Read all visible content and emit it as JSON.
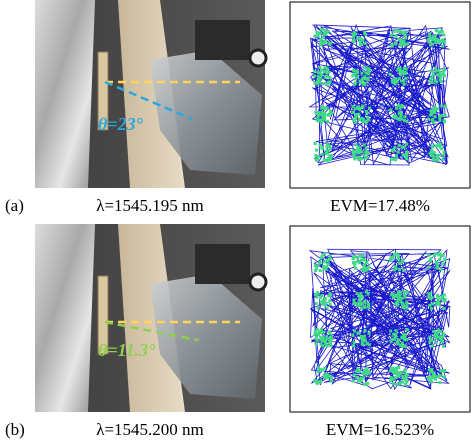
{
  "panels": [
    {
      "label": "(a)",
      "wavelength": "λ=1545.195 nm",
      "evm": "EVM=17.48%",
      "angle": "θ=23°"
    },
    {
      "label": "(b)",
      "wavelength": "λ=1545.200 nm",
      "evm": "EVM=16.523%",
      "angle": "θ=11.3°"
    }
  ]
}
